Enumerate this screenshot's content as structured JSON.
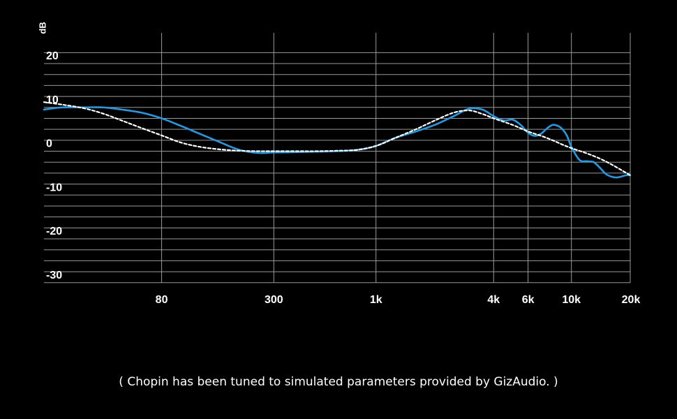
{
  "chart_data": {
    "type": "line",
    "ylabel": "dB",
    "xscale": "log",
    "xlim": [
      20,
      20000
    ],
    "ylim": [
      -30,
      20
    ],
    "grid": true,
    "x_ticks": [
      {
        "value": 80,
        "label": "80"
      },
      {
        "value": 300,
        "label": "300"
      },
      {
        "value": 1000,
        "label": "1k"
      },
      {
        "value": 4000,
        "label": "4k"
      },
      {
        "value": 6000,
        "label": "6k"
      },
      {
        "value": 10000,
        "label": "10k"
      },
      {
        "value": 20000,
        "label": "20k"
      }
    ],
    "y_ticks": [
      {
        "value": 20,
        "label": "20"
      },
      {
        "value": 10,
        "label": "10"
      },
      {
        "value": 0,
        "label": "0"
      },
      {
        "value": -10,
        "label": "-10"
      },
      {
        "value": -20,
        "label": "-20"
      },
      {
        "value": -30,
        "label": "-30"
      }
    ],
    "y_gridlines": [
      22.5,
      20,
      17.5,
      15,
      12.5,
      10,
      7.5,
      5,
      2.5,
      0,
      -2.5,
      -5,
      -7.5,
      -10,
      -12.5,
      -15,
      -17.5,
      -20,
      -22.5,
      -25,
      -27.5,
      -30
    ],
    "series": [
      {
        "style": "solid",
        "color": "#1e9ce6",
        "x": [
          20,
          25,
          32,
          40,
          50,
          63,
          80,
          100,
          125,
          160,
          200,
          250,
          300,
          400,
          500,
          630,
          800,
          1000,
          1250,
          1600,
          2000,
          2500,
          3000,
          3500,
          4000,
          4500,
          5000,
          5500,
          6000,
          6500,
          7000,
          7500,
          8000,
          8500,
          9000,
          9500,
          10000,
          11000,
          12000,
          13000,
          14000,
          15000,
          16000,
          17000,
          18000,
          19000,
          20000
        ],
        "y": [
          9.5,
          10.0,
          10.0,
          10.0,
          9.5,
          8.8,
          7.5,
          5.8,
          4.0,
          2.0,
          0.3,
          -0.4,
          -0.3,
          -0.2,
          -0.1,
          0.0,
          0.3,
          1.2,
          3.0,
          4.5,
          6.0,
          8.0,
          9.7,
          9.5,
          8.0,
          7.0,
          7.2,
          6.0,
          4.2,
          3.5,
          4.0,
          5.2,
          6.0,
          5.8,
          5.0,
          3.5,
          1.0,
          -2.0,
          -2.3,
          -2.5,
          -3.8,
          -5.2,
          -5.8,
          -6.0,
          -5.8,
          -5.5,
          -5.5
        ]
      },
      {
        "style": "dashed",
        "color": "#ffffff",
        "x": [
          20,
          25,
          32,
          40,
          50,
          63,
          80,
          100,
          125,
          160,
          200,
          250,
          300,
          400,
          500,
          630,
          800,
          1000,
          1250,
          1600,
          2000,
          2500,
          3000,
          3500,
          4000,
          5000,
          6000,
          7000,
          8000,
          9000,
          10000,
          12000,
          14000,
          16000,
          18000,
          20000
        ],
        "y": [
          11.2,
          10.6,
          9.8,
          8.6,
          7.0,
          5.3,
          3.6,
          2.0,
          1.0,
          0.4,
          0.1,
          0.0,
          0.0,
          0.0,
          0.0,
          0.1,
          0.3,
          1.2,
          3.0,
          5.0,
          7.0,
          8.8,
          9.3,
          8.5,
          7.5,
          6.0,
          4.5,
          3.5,
          2.5,
          1.5,
          0.7,
          -0.5,
          -1.7,
          -3.0,
          -4.3,
          -5.5
        ]
      }
    ]
  },
  "caption": "( Chopin has been tuned to simulated parameters provided by GizAudio. )"
}
